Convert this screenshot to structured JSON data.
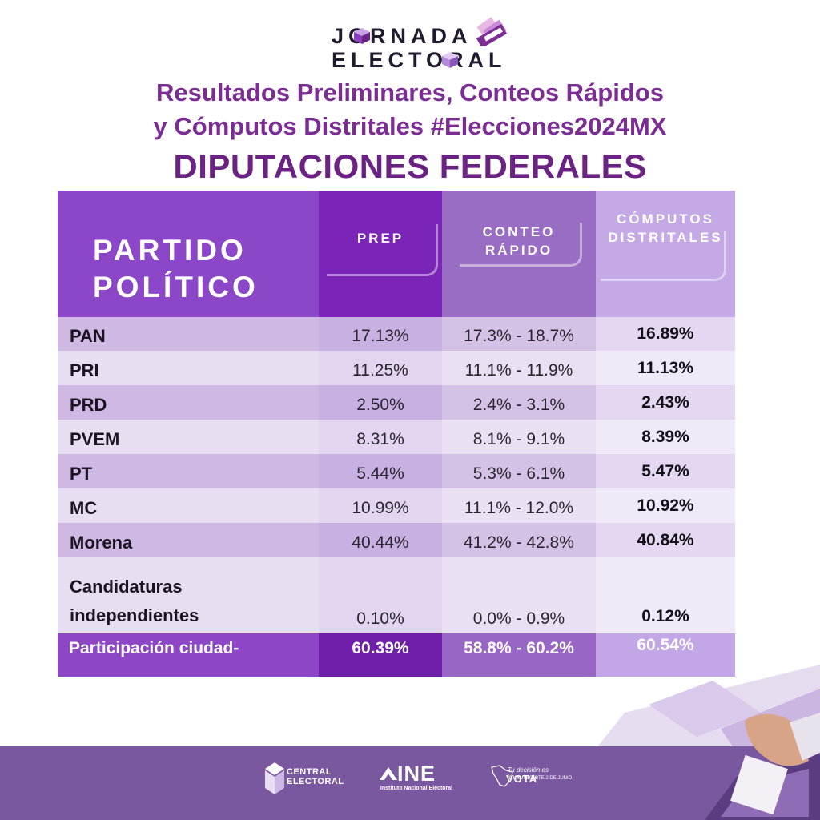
{
  "header": {
    "logo_line1": "JORNADA",
    "logo_line2": "ELECTORAL",
    "subtitle_line1": "Resultados Preliminares, Conteos Rápidos",
    "subtitle_line2": "y Cómputos Distritales #Elecciones2024MX",
    "title": "DIPUTACIONES FEDERALES"
  },
  "table": {
    "col_party_line1": "PARTIDO",
    "col_party_line2": "POLÍTICO",
    "col_prep": "PREP",
    "col_conteo_line1": "CONTEO",
    "col_conteo_line2": "RÁPIDO",
    "col_comp_line1": "CÓMPUTOS",
    "col_comp_line2": "DISTRITALES",
    "rows": [
      {
        "party": "PAN",
        "prep": "17.13%",
        "conteo": "17.3% - 18.7%",
        "computos": "16.89%"
      },
      {
        "party": "PRI",
        "prep": "11.25%",
        "conteo": "11.1% - 11.9%",
        "computos": "11.13%"
      },
      {
        "party": "PRD",
        "prep": "2.50%",
        "conteo": "2.4% - 3.1%",
        "computos": "2.43%"
      },
      {
        "party": "PVEM",
        "prep": "8.31%",
        "conteo": "8.1% - 9.1%",
        "computos": "8.39%"
      },
      {
        "party": "PT",
        "prep": "5.44%",
        "conteo": "5.3% - 6.1%",
        "computos": "5.47%"
      },
      {
        "party": "MC",
        "prep": "10.99%",
        "conteo": "11.1% - 12.0%",
        "computos": "10.92%"
      },
      {
        "party": "Morena",
        "prep": "40.44%",
        "conteo": "41.2% - 42.8%",
        "computos": "40.84%"
      }
    ],
    "indep": {
      "party_line1": "Candidaturas",
      "party_line2": "independientes",
      "prep": "0.10%",
      "conteo": "0.0% - 0.9%",
      "computos": "0.12%"
    },
    "participation": {
      "label": "Participación ciudad-",
      "prep": "60.39%",
      "conteo": "58.8% - 60.2%",
      "computos": "60.54%"
    }
  },
  "footer": {
    "central_line1": "CENTRAL",
    "central_line2": "ELECTORAL",
    "ine_big": "INE",
    "ine_small": "Instituto Nacional Electoral",
    "vota_line1": "Tu decisión es importante",
    "vota_word": "VOTA",
    "vota_date": "ESTE 2 DE JUNIO"
  },
  "colors": {
    "title_purple": "#6b2383",
    "subtitle_purple": "#7b2d93",
    "header_party": "#8b47c7",
    "header_prep": "#7a24b8",
    "header_conteo": "#9a6dc4",
    "header_computos": "#c5a8e6",
    "footer_band": "#7a58a0"
  }
}
